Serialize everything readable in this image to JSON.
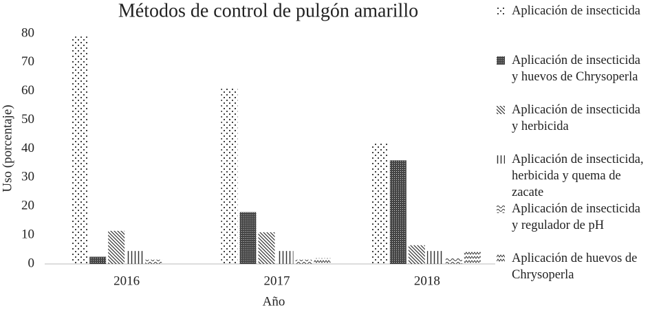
{
  "chart_data": {
    "type": "bar",
    "title": "Métodos de control de pulgón amarillo",
    "x_label": "Año",
    "y_label": "Uso (porcentaje)",
    "categories": [
      "2016",
      "2017",
      "2018"
    ],
    "series": [
      {
        "name": "Aplicación de insecticida",
        "color": "#000000",
        "pattern": "dots",
        "values": [
          79,
          61,
          42
        ]
      },
      {
        "name": "Aplicación de insecticida y huevos de Chrysoperla",
        "color": "#000000",
        "pattern": "dense",
        "values": [
          2.5,
          18,
          36
        ]
      },
      {
        "name": "Aplicación de insecticida y herbicida",
        "color": "#000000",
        "pattern": "diagonal",
        "values": [
          11.5,
          11,
          6.5
        ]
      },
      {
        "name": "Aplicación de insecticida, herbicida y quema de zacate",
        "color": "#000000",
        "pattern": "vertical",
        "values": [
          4.5,
          4.5,
          4.5
        ]
      },
      {
        "name": "Aplicación de insecticida y regulador de pH",
        "color": "#000000",
        "pattern": "wave",
        "values": [
          1.5,
          1.5,
          2
        ]
      },
      {
        "name": "Aplicación de huevos de Chrysoperla",
        "color": "#000000",
        "pattern": "zigzag",
        "values": [
          0,
          2,
          4.5
        ]
      }
    ],
    "ylim": [
      0,
      80
    ],
    "yticks": [
      0,
      10,
      20,
      30,
      40,
      50,
      60,
      70,
      80
    ],
    "grid": false,
    "legend": "right"
  }
}
